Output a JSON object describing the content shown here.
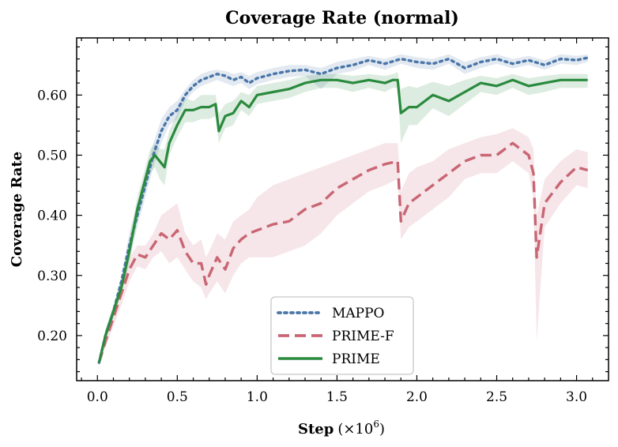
{
  "chart_data": {
    "type": "line",
    "title": "Coverage Rate (normal)",
    "xlabel_main": "Step",
    "xlabel_unit_open": "(×10",
    "xlabel_unit_exp": "6",
    "xlabel_unit_close": ")",
    "ylabel": "Coverage Rate",
    "xlim": [
      -0.13,
      3.2
    ],
    "ylim": [
      0.125,
      0.695
    ],
    "xticks": [
      0.0,
      0.5,
      1.0,
      1.5,
      2.0,
      2.5,
      3.0
    ],
    "xtick_labels": [
      "0.0",
      "0.5",
      "1.0",
      "1.5",
      "2.0",
      "2.5",
      "3.0"
    ],
    "yticks": [
      0.2,
      0.3,
      0.4,
      0.5,
      0.6
    ],
    "ytick_labels": [
      "0.20",
      "0.30",
      "0.40",
      "0.50",
      "0.60"
    ],
    "grid": false,
    "legend_position": "bottom-center",
    "series": [
      {
        "name": "MAPPO",
        "color": "#4a76a8",
        "style": "dotted",
        "x": [
          0.01,
          0.05,
          0.1,
          0.15,
          0.2,
          0.25,
          0.3,
          0.35,
          0.4,
          0.45,
          0.5,
          0.55,
          0.6,
          0.65,
          0.7,
          0.75,
          0.8,
          0.85,
          0.9,
          0.95,
          1.0,
          1.1,
          1.2,
          1.3,
          1.4,
          1.5,
          1.6,
          1.7,
          1.8,
          1.9,
          2.0,
          2.1,
          2.2,
          2.3,
          2.4,
          2.5,
          2.6,
          2.7,
          2.8,
          2.9,
          3.0,
          3.07
        ],
        "y": [
          0.155,
          0.2,
          0.24,
          0.29,
          0.35,
          0.4,
          0.45,
          0.5,
          0.54,
          0.565,
          0.575,
          0.6,
          0.615,
          0.625,
          0.63,
          0.635,
          0.632,
          0.625,
          0.63,
          0.62,
          0.628,
          0.635,
          0.64,
          0.642,
          0.635,
          0.645,
          0.65,
          0.658,
          0.652,
          0.66,
          0.655,
          0.652,
          0.66,
          0.645,
          0.655,
          0.66,
          0.652,
          0.658,
          0.65,
          0.66,
          0.658,
          0.662
        ],
        "upper": [
          0.16,
          0.21,
          0.25,
          0.3,
          0.37,
          0.42,
          0.47,
          0.52,
          0.56,
          0.58,
          0.59,
          0.61,
          0.625,
          0.635,
          0.64,
          0.642,
          0.64,
          0.635,
          0.638,
          0.632,
          0.638,
          0.645,
          0.65,
          0.65,
          0.645,
          0.655,
          0.66,
          0.665,
          0.66,
          0.668,
          0.663,
          0.66,
          0.668,
          0.655,
          0.663,
          0.668,
          0.66,
          0.665,
          0.658,
          0.668,
          0.665,
          0.668
        ],
        "lower": [
          0.15,
          0.19,
          0.23,
          0.28,
          0.33,
          0.38,
          0.43,
          0.48,
          0.52,
          0.55,
          0.56,
          0.59,
          0.605,
          0.615,
          0.62,
          0.625,
          0.62,
          0.615,
          0.62,
          0.61,
          0.618,
          0.625,
          0.63,
          0.632,
          0.61,
          0.635,
          0.64,
          0.65,
          0.642,
          0.652,
          0.645,
          0.642,
          0.652,
          0.635,
          0.645,
          0.652,
          0.644,
          0.65,
          0.642,
          0.652,
          0.65,
          0.655
        ]
      },
      {
        "name": "PRIME-F",
        "color": "#c96674",
        "style": "dashed",
        "x": [
          0.01,
          0.05,
          0.1,
          0.15,
          0.2,
          0.25,
          0.3,
          0.35,
          0.4,
          0.45,
          0.5,
          0.55,
          0.6,
          0.65,
          0.68,
          0.7,
          0.75,
          0.8,
          0.85,
          0.9,
          0.95,
          1.0,
          1.1,
          1.2,
          1.3,
          1.4,
          1.5,
          1.6,
          1.7,
          1.8,
          1.88,
          1.9,
          1.95,
          2.0,
          2.1,
          2.2,
          2.3,
          2.4,
          2.5,
          2.6,
          2.7,
          2.73,
          2.75,
          2.8,
          2.9,
          3.0,
          3.07
        ],
        "y": [
          0.155,
          0.19,
          0.23,
          0.27,
          0.31,
          0.335,
          0.33,
          0.35,
          0.37,
          0.36,
          0.375,
          0.34,
          0.32,
          0.32,
          0.285,
          0.3,
          0.33,
          0.31,
          0.345,
          0.36,
          0.37,
          0.375,
          0.385,
          0.39,
          0.41,
          0.42,
          0.445,
          0.46,
          0.475,
          0.485,
          0.49,
          0.39,
          0.42,
          0.43,
          0.45,
          0.47,
          0.49,
          0.5,
          0.5,
          0.52,
          0.5,
          0.47,
          0.33,
          0.42,
          0.455,
          0.48,
          0.475
        ],
        "upper": [
          0.16,
          0.2,
          0.245,
          0.29,
          0.33,
          0.35,
          0.35,
          0.37,
          0.4,
          0.41,
          0.42,
          0.37,
          0.35,
          0.36,
          0.33,
          0.34,
          0.37,
          0.36,
          0.39,
          0.4,
          0.41,
          0.43,
          0.45,
          0.46,
          0.47,
          0.48,
          0.49,
          0.5,
          0.51,
          0.52,
          0.52,
          0.44,
          0.47,
          0.48,
          0.49,
          0.51,
          0.52,
          0.53,
          0.535,
          0.545,
          0.53,
          0.51,
          0.4,
          0.46,
          0.49,
          0.51,
          0.505
        ],
        "lower": [
          0.15,
          0.18,
          0.215,
          0.25,
          0.29,
          0.315,
          0.31,
          0.33,
          0.34,
          0.32,
          0.33,
          0.31,
          0.29,
          0.28,
          0.26,
          0.27,
          0.29,
          0.27,
          0.3,
          0.32,
          0.33,
          0.33,
          0.33,
          0.34,
          0.35,
          0.37,
          0.4,
          0.42,
          0.44,
          0.45,
          0.46,
          0.36,
          0.38,
          0.39,
          0.41,
          0.43,
          0.46,
          0.47,
          0.47,
          0.49,
          0.47,
          0.43,
          0.19,
          0.38,
          0.42,
          0.45,
          0.445
        ]
      },
      {
        "name": "PRIME",
        "color": "#2a8a3e",
        "style": "solid",
        "x": [
          0.01,
          0.05,
          0.1,
          0.15,
          0.2,
          0.25,
          0.3,
          0.33,
          0.36,
          0.39,
          0.42,
          0.45,
          0.5,
          0.55,
          0.6,
          0.65,
          0.7,
          0.74,
          0.76,
          0.8,
          0.85,
          0.9,
          0.95,
          1.0,
          1.1,
          1.2,
          1.3,
          1.4,
          1.5,
          1.6,
          1.7,
          1.8,
          1.85,
          1.88,
          1.9,
          1.95,
          2.0,
          2.1,
          2.2,
          2.3,
          2.4,
          2.5,
          2.6,
          2.7,
          2.8,
          2.9,
          3.0,
          3.07
        ],
        "y": [
          0.155,
          0.2,
          0.24,
          0.28,
          0.34,
          0.41,
          0.46,
          0.49,
          0.5,
          0.49,
          0.48,
          0.52,
          0.55,
          0.575,
          0.575,
          0.58,
          0.58,
          0.585,
          0.54,
          0.565,
          0.57,
          0.59,
          0.58,
          0.6,
          0.605,
          0.61,
          0.62,
          0.625,
          0.625,
          0.62,
          0.625,
          0.62,
          0.625,
          0.625,
          0.57,
          0.58,
          0.58,
          0.6,
          0.59,
          0.605,
          0.62,
          0.615,
          0.625,
          0.615,
          0.62,
          0.625,
          0.625,
          0.625
        ],
        "upper": [
          0.16,
          0.21,
          0.25,
          0.29,
          0.36,
          0.43,
          0.48,
          0.51,
          0.52,
          0.51,
          0.51,
          0.54,
          0.57,
          0.595,
          0.59,
          0.6,
          0.6,
          0.6,
          0.57,
          0.585,
          0.59,
          0.605,
          0.6,
          0.615,
          0.62,
          0.625,
          0.632,
          0.635,
          0.635,
          0.632,
          0.635,
          0.632,
          0.635,
          0.638,
          0.61,
          0.615,
          0.612,
          0.622,
          0.615,
          0.625,
          0.632,
          0.628,
          0.635,
          0.628,
          0.632,
          0.635,
          0.635,
          0.635
        ],
        "lower": [
          0.15,
          0.19,
          0.23,
          0.27,
          0.32,
          0.39,
          0.44,
          0.47,
          0.48,
          0.46,
          0.45,
          0.5,
          0.53,
          0.555,
          0.555,
          0.56,
          0.56,
          0.565,
          0.52,
          0.545,
          0.55,
          0.575,
          0.565,
          0.585,
          0.59,
          0.595,
          0.605,
          0.612,
          0.612,
          0.605,
          0.612,
          0.605,
          0.612,
          0.612,
          0.52,
          0.55,
          0.55,
          0.578,
          0.565,
          0.585,
          0.605,
          0.6,
          0.612,
          0.6,
          0.605,
          0.612,
          0.612,
          0.612
        ]
      }
    ]
  }
}
